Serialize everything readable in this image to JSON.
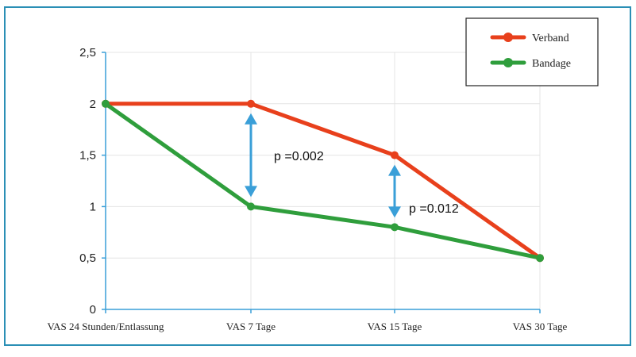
{
  "chart_data": {
    "type": "line",
    "categories": [
      "VAS 24 Stunden/Entlassung",
      "VAS 7 Tage",
      "VAS 15 Tage",
      "VAS 30 Tage"
    ],
    "series": [
      {
        "name": "Verband",
        "values": [
          2,
          2,
          1.5,
          0.5
        ],
        "color": "#e8401c"
      },
      {
        "name": "Bandage",
        "values": [
          2,
          1,
          0.8,
          0.5
        ],
        "color": "#2f9e3c"
      }
    ],
    "y_ticks": [
      "0",
      "0,5",
      "1",
      "1,5",
      "2",
      "2,5"
    ],
    "ylim": [
      0,
      2.5
    ],
    "grid": true,
    "legend_position": "top-right",
    "annotations": [
      {
        "text": "p =0.002",
        "category_index": 1,
        "from": 2,
        "to": 1
      },
      {
        "text": "p =0.012",
        "category_index": 2,
        "from": 1.5,
        "to": 0.8
      }
    ],
    "arrow_color": "#3a9fd8"
  }
}
